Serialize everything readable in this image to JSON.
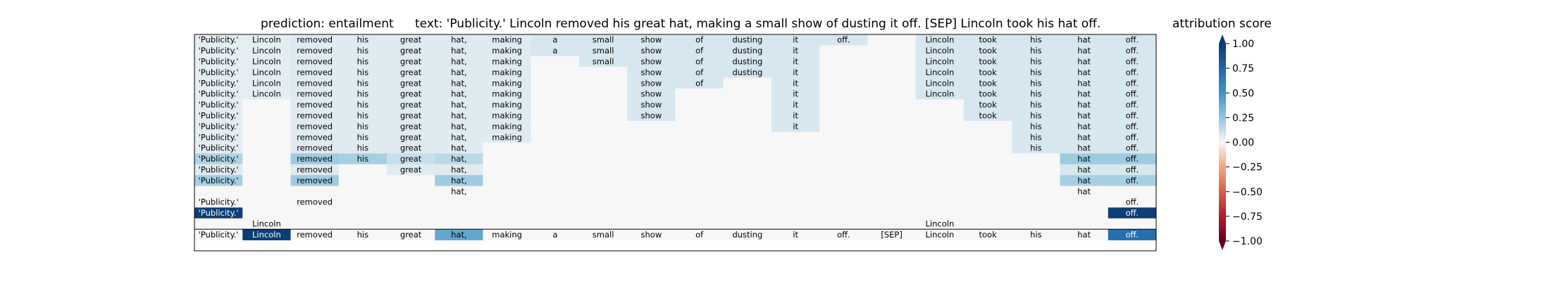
{
  "header": {
    "prediction_label": "prediction:  entailment",
    "text_label": "text:  'Publicity.' Lincoln removed his great hat, making a small show of dusting it off. [SEP] Lincoln took his hat off."
  },
  "colorbar": {
    "title": "attribution score",
    "ticks": [
      "1.00",
      "0.75",
      "0.50",
      "0.25",
      "0.00",
      "−0.25",
      "−0.50",
      "−0.75",
      "−1.00"
    ],
    "colormap": "RdBu",
    "colors": {
      "pos_strong": "#0b3b70",
      "mid": "#f7f7f7",
      "neg_strong": "#67001f"
    }
  },
  "chart_data": {
    "type": "heatmap",
    "title": "attribution score",
    "value_range": [
      -1.0,
      1.0
    ],
    "tokens": [
      "'Publicity.'",
      "Lincoln",
      "removed",
      "his",
      "great",
      "hat,",
      "making",
      "a",
      "small",
      "show",
      "of",
      "dusting",
      "it",
      "off.",
      "[SEP]",
      "Lincoln",
      "took",
      "his",
      "hat",
      "off."
    ],
    "rows": [
      {
        "shown": [
          1,
          1,
          1,
          1,
          1,
          1,
          1,
          1,
          1,
          1,
          1,
          1,
          1,
          1,
          0,
          1,
          1,
          1,
          1,
          1
        ],
        "values": [
          0.05,
          0.05,
          0.06,
          0.06,
          0.06,
          0.06,
          0.06,
          0.08,
          0.08,
          0.08,
          0.08,
          0.08,
          0.08,
          0.08,
          0,
          0.08,
          0.08,
          0.08,
          0.08,
          0.08
        ]
      },
      {
        "shown": [
          1,
          1,
          1,
          1,
          1,
          1,
          1,
          1,
          1,
          1,
          1,
          1,
          1,
          0,
          0,
          1,
          1,
          1,
          1,
          1
        ],
        "values": [
          0.05,
          0.05,
          0.06,
          0.06,
          0.06,
          0.06,
          0.06,
          0.08,
          0.08,
          0.08,
          0.08,
          0.08,
          0.08,
          0,
          0,
          0.08,
          0.08,
          0.08,
          0.08,
          0.08
        ]
      },
      {
        "shown": [
          1,
          1,
          1,
          1,
          1,
          1,
          1,
          0,
          1,
          1,
          1,
          1,
          1,
          0,
          0,
          1,
          1,
          1,
          1,
          1
        ],
        "values": [
          0.05,
          0.05,
          0.06,
          0.06,
          0.06,
          0.06,
          0.06,
          0,
          0.08,
          0.08,
          0.08,
          0.08,
          0.08,
          0,
          0,
          0.08,
          0.08,
          0.08,
          0.08,
          0.08
        ]
      },
      {
        "shown": [
          1,
          1,
          1,
          1,
          1,
          1,
          1,
          0,
          0,
          1,
          1,
          1,
          1,
          0,
          0,
          1,
          1,
          1,
          1,
          1
        ],
        "values": [
          0.05,
          0.05,
          0.06,
          0.06,
          0.06,
          0.06,
          0.06,
          0,
          0,
          0.08,
          0.08,
          0.08,
          0.08,
          0,
          0,
          0.08,
          0.08,
          0.08,
          0.08,
          0.08
        ]
      },
      {
        "shown": [
          1,
          1,
          1,
          1,
          1,
          1,
          1,
          0,
          0,
          1,
          1,
          0,
          1,
          0,
          0,
          1,
          1,
          1,
          1,
          1
        ],
        "values": [
          0.05,
          0.05,
          0.06,
          0.06,
          0.06,
          0.06,
          0.06,
          0,
          0,
          0.08,
          0.08,
          0,
          0.08,
          0,
          0,
          0.08,
          0.08,
          0.08,
          0.08,
          0.08
        ]
      },
      {
        "shown": [
          1,
          1,
          1,
          1,
          1,
          1,
          1,
          0,
          0,
          1,
          0,
          0,
          1,
          0,
          0,
          1,
          1,
          1,
          1,
          1
        ],
        "values": [
          0.05,
          0.05,
          0.06,
          0.06,
          0.06,
          0.06,
          0.06,
          0,
          0,
          0.08,
          0,
          0,
          0.08,
          0,
          0,
          0.08,
          0.08,
          0.08,
          0.08,
          0.08
        ]
      },
      {
        "shown": [
          1,
          0,
          1,
          1,
          1,
          1,
          1,
          0,
          0,
          1,
          0,
          0,
          1,
          0,
          0,
          0,
          1,
          1,
          1,
          1
        ],
        "values": [
          0.05,
          0,
          0.06,
          0.06,
          0.06,
          0.06,
          0.06,
          0,
          0,
          0.08,
          0,
          0,
          0.08,
          0,
          0,
          0,
          0.08,
          0.08,
          0.08,
          0.08
        ]
      },
      {
        "shown": [
          1,
          0,
          1,
          1,
          1,
          1,
          1,
          0,
          0,
          1,
          0,
          0,
          1,
          0,
          0,
          0,
          1,
          1,
          1,
          1
        ],
        "values": [
          0.05,
          0,
          0.06,
          0.06,
          0.06,
          0.06,
          0.06,
          0,
          0,
          0.08,
          0,
          0,
          0.08,
          0,
          0,
          0,
          0.08,
          0.08,
          0.08,
          0.08
        ]
      },
      {
        "shown": [
          1,
          0,
          1,
          1,
          1,
          1,
          1,
          0,
          0,
          0,
          0,
          0,
          1,
          0,
          0,
          0,
          0,
          1,
          1,
          1
        ],
        "values": [
          0.05,
          0,
          0.06,
          0.06,
          0.06,
          0.06,
          0.06,
          0,
          0,
          0,
          0,
          0,
          0.08,
          0,
          0,
          0,
          0,
          0.08,
          0.08,
          0.08
        ]
      },
      {
        "shown": [
          1,
          0,
          1,
          1,
          1,
          1,
          1,
          0,
          0,
          0,
          0,
          0,
          0,
          0,
          0,
          0,
          0,
          1,
          1,
          1
        ],
        "values": [
          0.05,
          0,
          0.06,
          0.06,
          0.06,
          0.06,
          0.06,
          0,
          0,
          0,
          0,
          0,
          0,
          0,
          0,
          0,
          0,
          0.08,
          0.08,
          0.08
        ]
      },
      {
        "shown": [
          1,
          0,
          1,
          1,
          1,
          1,
          0,
          0,
          0,
          0,
          0,
          0,
          0,
          0,
          0,
          0,
          0,
          1,
          1,
          1
        ],
        "values": [
          0.05,
          0,
          0.06,
          0.06,
          0.06,
          0.06,
          0,
          0,
          0,
          0,
          0,
          0,
          0,
          0,
          0,
          0,
          0,
          0.08,
          0.08,
          0.08
        ]
      },
      {
        "shown": [
          1,
          0,
          1,
          1,
          1,
          1,
          0,
          0,
          0,
          0,
          0,
          0,
          0,
          0,
          0,
          0,
          0,
          0,
          1,
          1
        ],
        "values": [
          0.18,
          0,
          0.22,
          0.2,
          0.12,
          0.15,
          0,
          0,
          0,
          0,
          0,
          0,
          0,
          0,
          0,
          0,
          0,
          0,
          0.22,
          0.22
        ]
      },
      {
        "shown": [
          1,
          0,
          1,
          0,
          1,
          1,
          0,
          0,
          0,
          0,
          0,
          0,
          0,
          0,
          0,
          0,
          0,
          0,
          1,
          1
        ],
        "values": [
          0.06,
          0,
          0.06,
          0,
          0.06,
          0.06,
          0,
          0,
          0,
          0,
          0,
          0,
          0,
          0,
          0,
          0,
          0,
          0,
          0.08,
          0.08
        ]
      },
      {
        "shown": [
          1,
          0,
          1,
          0,
          0,
          1,
          0,
          0,
          0,
          0,
          0,
          0,
          0,
          0,
          0,
          0,
          0,
          0,
          1,
          1
        ],
        "values": [
          0.2,
          0,
          0.22,
          0,
          0,
          0.22,
          0,
          0,
          0,
          0,
          0,
          0,
          0,
          0,
          0,
          0,
          0,
          0,
          0.2,
          0.2
        ]
      },
      {
        "shown": [
          0,
          0,
          0,
          0,
          0,
          1,
          0,
          0,
          0,
          0,
          0,
          0,
          0,
          0,
          0,
          0,
          0,
          0,
          1,
          0
        ],
        "values": [
          0,
          0,
          0,
          0,
          0,
          0,
          0,
          0,
          0,
          0,
          0,
          0,
          0,
          0,
          0,
          0,
          0,
          0,
          0,
          0
        ]
      },
      {
        "shown": [
          1,
          0,
          1,
          0,
          0,
          0,
          0,
          0,
          0,
          0,
          0,
          0,
          0,
          0,
          0,
          0,
          0,
          0,
          0,
          1
        ],
        "values": [
          0,
          0,
          0,
          0,
          0,
          0,
          0,
          0,
          0,
          0,
          0,
          0,
          0,
          0,
          0,
          0,
          0,
          0,
          0,
          0
        ]
      },
      {
        "shown": [
          1,
          0,
          0,
          0,
          0,
          0,
          0,
          0,
          0,
          0,
          0,
          0,
          0,
          0,
          0,
          0,
          0,
          0,
          0,
          1
        ],
        "values": [
          0.98,
          0,
          0,
          0,
          0,
          0,
          0,
          0,
          0,
          0,
          0,
          0,
          0,
          0,
          0,
          0,
          0,
          0,
          0,
          0.98
        ]
      },
      {
        "shown": [
          0,
          1,
          0,
          0,
          0,
          0,
          0,
          0,
          0,
          0,
          0,
          0,
          0,
          0,
          0,
          1,
          0,
          0,
          0,
          0
        ],
        "values": [
          0,
          0,
          0,
          0,
          0,
          0,
          0,
          0,
          0,
          0,
          0,
          0,
          0,
          0,
          0,
          0,
          0,
          0,
          0,
          0
        ]
      }
    ],
    "summary_row": {
      "shown": [
        1,
        1,
        1,
        1,
        1,
        1,
        1,
        1,
        1,
        1,
        1,
        1,
        1,
        1,
        1,
        1,
        1,
        1,
        1,
        1
      ],
      "values": [
        0,
        0.98,
        0,
        0,
        0,
        0.4,
        0,
        0,
        0,
        0,
        0,
        0,
        0,
        0,
        0,
        0,
        0,
        0,
        0,
        0.7
      ]
    }
  }
}
